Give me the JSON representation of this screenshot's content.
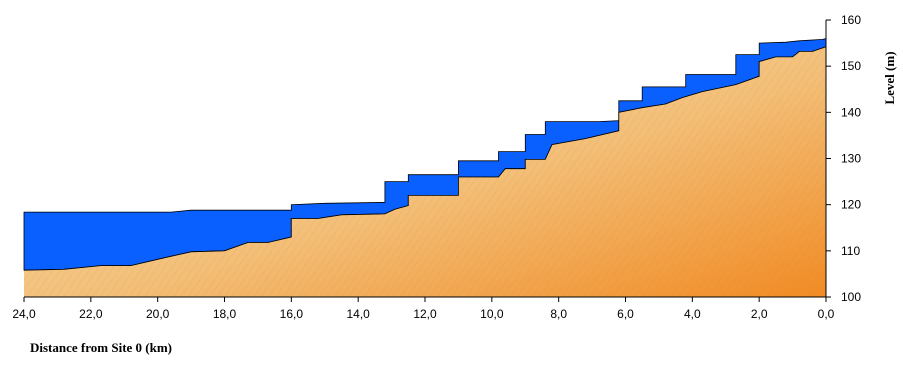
{
  "chart_data": {
    "type": "area",
    "xlabel": "Distance from Site 0 (km)",
    "ylabel": "Level (m)",
    "xlim": [
      24,
      0
    ],
    "ylim": [
      100,
      160
    ],
    "x_ticks": [
      "24,0",
      "22,0",
      "20,0",
      "18,0",
      "16,0",
      "14,0",
      "12,0",
      "10,0",
      "8,0",
      "6,0",
      "4,0",
      "2,0",
      "0,0"
    ],
    "x_tick_values": [
      24,
      22,
      20,
      18,
      16,
      14,
      12,
      10,
      8,
      6,
      4,
      2,
      0
    ],
    "y_ticks": [
      "100",
      "110",
      "120",
      "130",
      "140",
      "150",
      "160"
    ],
    "y_tick_values": [
      100,
      110,
      120,
      130,
      140,
      150,
      160
    ],
    "series": [
      {
        "role": "bed",
        "color": "#eea24e",
        "points": [
          [
            24,
            105.8
          ],
          [
            22.8,
            106
          ],
          [
            21.7,
            106.8
          ],
          [
            20.8,
            106.8
          ],
          [
            19.8,
            108.5
          ],
          [
            19,
            109.8
          ],
          [
            18,
            110
          ],
          [
            17.3,
            111.8
          ],
          [
            16.7,
            111.8
          ],
          [
            16,
            113
          ],
          [
            16,
            117
          ],
          [
            15.2,
            117
          ],
          [
            14.5,
            117.8
          ],
          [
            13.2,
            118
          ],
          [
            12.9,
            119
          ],
          [
            12.5,
            119.8
          ],
          [
            12.5,
            122
          ],
          [
            11.4,
            122
          ],
          [
            11,
            122
          ],
          [
            11,
            126
          ],
          [
            9.8,
            126
          ],
          [
            9.6,
            127.8
          ],
          [
            9,
            127.8
          ],
          [
            9,
            129.8
          ],
          [
            8.4,
            129.8
          ],
          [
            8.2,
            133
          ],
          [
            7.2,
            134.3
          ],
          [
            6.2,
            136
          ],
          [
            6.2,
            140
          ],
          [
            5.5,
            141
          ],
          [
            4.8,
            141.8
          ],
          [
            4.3,
            143.2
          ],
          [
            3.7,
            144.5
          ],
          [
            2.7,
            146
          ],
          [
            2,
            147.8
          ],
          [
            2,
            151
          ],
          [
            1.5,
            152
          ],
          [
            1,
            152
          ],
          [
            0.8,
            153.2
          ],
          [
            0.4,
            153.2
          ],
          [
            0,
            154.2
          ]
        ]
      },
      {
        "role": "water",
        "color": "#0a5fff",
        "points": [
          [
            24,
            118.4
          ],
          [
            19.6,
            118.4
          ],
          [
            19,
            118.8
          ],
          [
            16,
            118.8
          ],
          [
            16,
            120
          ],
          [
            15,
            120.3
          ],
          [
            13.2,
            120.5
          ],
          [
            13.2,
            125
          ],
          [
            12.5,
            125
          ],
          [
            12.5,
            126.5
          ],
          [
            11,
            126.5
          ],
          [
            11,
            129.5
          ],
          [
            9.8,
            129.5
          ],
          [
            9.8,
            131.5
          ],
          [
            9,
            131.5
          ],
          [
            9,
            135.2
          ],
          [
            8.4,
            135.2
          ],
          [
            8.4,
            138
          ],
          [
            6.8,
            138
          ],
          [
            6.2,
            138.2
          ],
          [
            6.2,
            142.5
          ],
          [
            5.5,
            142.5
          ],
          [
            5.5,
            145.5
          ],
          [
            4.2,
            145.5
          ],
          [
            4.2,
            148.2
          ],
          [
            2.7,
            148.2
          ],
          [
            2.7,
            152.5
          ],
          [
            2,
            152.5
          ],
          [
            2,
            155
          ],
          [
            1.2,
            155.2
          ],
          [
            0.8,
            155.5
          ],
          [
            0.1,
            155.8
          ],
          [
            0,
            156
          ]
        ]
      }
    ],
    "grid": false,
    "legend": "none"
  }
}
